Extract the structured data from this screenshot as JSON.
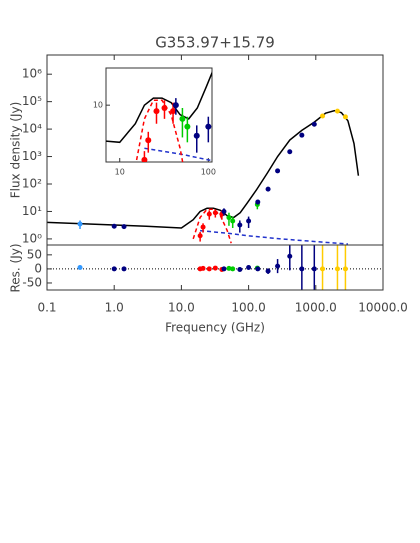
{
  "chart_data": {
    "type": "scatter",
    "title": "G353.97+15.79",
    "x_label": "Frequency (GHz)",
    "y_label": "Flux density (Jy)",
    "res_label": "Res. (Jy)",
    "log_x": true,
    "log_y": true,
    "xlim": [
      0.1,
      10000
    ],
    "xticks": [
      0.1,
      {
        "value": 1,
        "label": "1.0"
      },
      {
        "value": 10,
        "label": "10.0"
      },
      {
        "value": 100,
        "label": "100.0"
      },
      {
        "value": 1000,
        "label": "1000.0"
      },
      {
        "value": 10000,
        "label": "10000.0"
      }
    ],
    "ylim": [
      0.6,
      5000000
    ],
    "yticks": [
      {
        "value": 1,
        "label": "10⁰"
      },
      {
        "value": 10,
        "label": "10¹"
      },
      {
        "value": 100,
        "label": "10²"
      },
      {
        "value": 1000,
        "label": "10³"
      },
      {
        "value": 10000,
        "label": "10⁴"
      },
      {
        "value": 100000,
        "label": "10⁵"
      },
      {
        "value": 1000000,
        "label": "10⁶"
      }
    ],
    "res_ylim": [
      -75,
      85
    ],
    "res_yticks": [
      50,
      0,
      -50
    ],
    "series": [
      {
        "color": "#3399ff",
        "x": [
          0.31
        ],
        "values": [
          3.5
        ],
        "errors": [
          1.2
        ],
        "residuals": [
          5
        ],
        "residual_errors": [
          3
        ]
      },
      {
        "color": "#ff0000",
        "x": [
          19,
          21,
          26,
          32,
          40
        ],
        "values": [
          1.3,
          2.7,
          8,
          9,
          8
        ],
        "errors": [
          0.5,
          1,
          3,
          3,
          3
        ],
        "residuals": [
          0,
          2,
          0,
          3,
          -2
        ],
        "residual_errors": [
          3,
          3,
          4,
          4,
          4
        ]
      },
      {
        "color": "#00cc00",
        "x": [
          51,
          58,
          135
        ],
        "values": [
          6,
          4.5,
          18
        ],
        "errors": [
          3,
          2,
          6
        ],
        "residuals": [
          2,
          0,
          3
        ],
        "residual_errors": [
          4,
          3,
          5
        ]
      },
      {
        "color": "#000080",
        "x": [
          1.0,
          1.4,
          43,
          74,
          100,
          137,
          195,
          270,
          410,
          620,
          950
        ],
        "values": [
          2.9,
          2.8,
          10,
          3.2,
          4.5,
          22,
          65,
          300,
          1500,
          6000,
          15000
        ],
        "errors": [
          0.3,
          0.3,
          3,
          1.5,
          2,
          4,
          8,
          30,
          150,
          600,
          1500
        ],
        "residuals": [
          0,
          0,
          0,
          -2,
          5,
          0,
          -8,
          10,
          45,
          0,
          0
        ],
        "residual_errors": [
          3,
          3,
          5,
          5,
          5,
          5,
          10,
          25,
          50,
          150,
          150
        ]
      },
      {
        "color": "#ffcc00",
        "x": [
          1260,
          2100,
          2760
        ],
        "values": [
          30000,
          45000,
          28000
        ],
        "errors": [
          3000,
          4000,
          3000
        ],
        "residuals": [
          0,
          0,
          0
        ],
        "residual_errors": [
          150,
          150,
          150
        ]
      }
    ],
    "curves": [
      {
        "color": "#000000",
        "dash": false,
        "x": [
          0.1,
          0.3,
          1,
          3,
          10,
          15,
          19,
          24,
          30,
          38,
          48,
          60,
          75,
          95,
          130,
          190,
          270,
          410,
          620,
          950,
          1400,
          1900,
          2400,
          3000,
          3700,
          4300
        ],
        "values": [
          4,
          3.6,
          3.2,
          2.9,
          2.5,
          5,
          10,
          13,
          13,
          11,
          7,
          6,
          9,
          20,
          60,
          250,
          1000,
          4000,
          9000,
          18000,
          38000,
          47000,
          40000,
          20000,
          3000,
          200
        ]
      },
      {
        "color": "#2233cc",
        "dash": true,
        "x": [
          19,
          30,
          50,
          100,
          300,
          1000,
          3000
        ],
        "values": [
          2,
          1.8,
          1.6,
          1.3,
          1,
          0.8,
          0.65
        ]
      },
      {
        "color": "#ff0000",
        "dash": true,
        "x": [
          15,
          19,
          24,
          30,
          38,
          48,
          55
        ],
        "values": [
          1,
          6,
          12,
          12,
          7,
          2,
          0.7
        ]
      }
    ],
    "inset": {
      "xlim": [
        7,
        110
      ],
      "xticks": [
        10,
        100
      ],
      "ylim": [
        1.2,
        40
      ],
      "yticks": [
        10
      ]
    }
  }
}
